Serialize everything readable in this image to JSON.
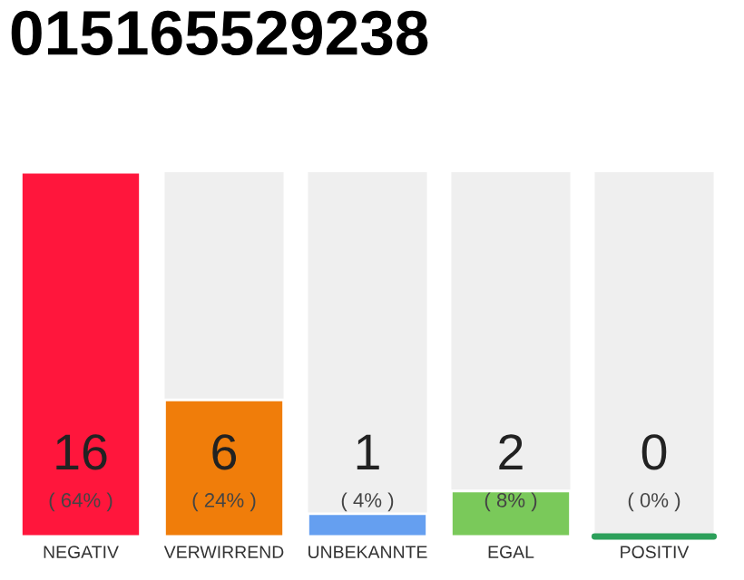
{
  "chart_data": {
    "type": "bar",
    "title": "015165529238",
    "categories": [
      "NEGATIV",
      "VERWIRREND",
      "UNBEKANNTE",
      "EGAL",
      "POSITIV"
    ],
    "values": [
      16,
      6,
      1,
      2,
      0
    ],
    "colors": [
      "#ff163c",
      "#f07d0a",
      "#659ff0",
      "#7ac95a",
      "#2ca05a"
    ],
    "value_labels": [
      "16",
      "6",
      "1",
      "2",
      "0"
    ],
    "annotations": [
      "( 64% )",
      "( 24% )",
      "( 4% )",
      "( 8% )",
      "( 0% )"
    ],
    "ylim": [
      0,
      16
    ],
    "tick_labels": "x",
    "grid": false,
    "legend": false
  }
}
